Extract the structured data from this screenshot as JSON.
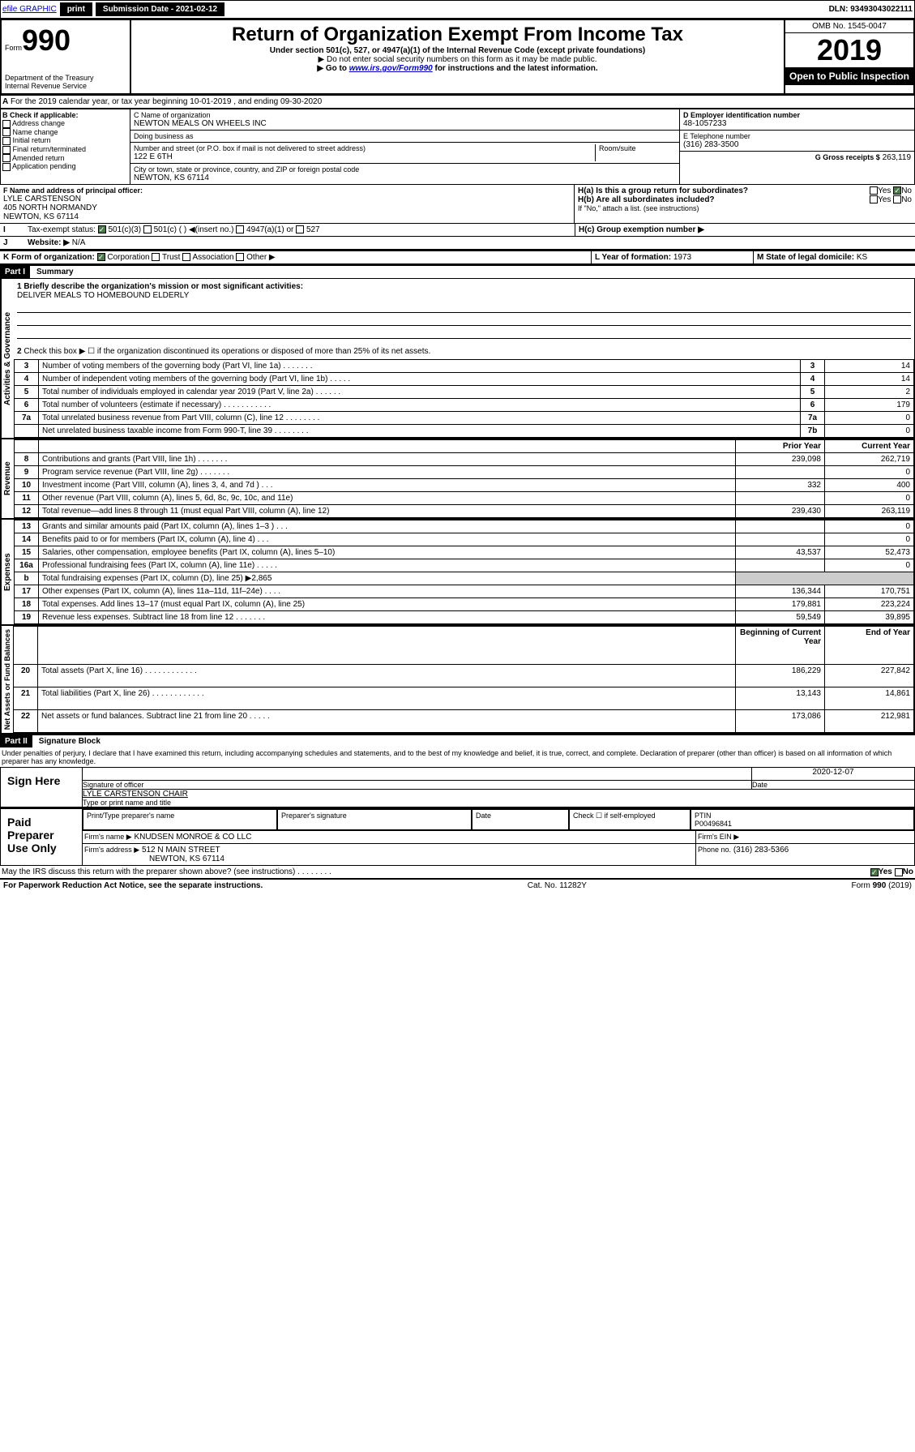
{
  "topbar": {
    "efile": "efile GRAPHIC",
    "print": "print",
    "submission": "Submission Date - 2021-02-12",
    "dln": "DLN: 93493043022111"
  },
  "header": {
    "form_prefix": "Form",
    "form_number": "990",
    "title": "Return of Organization Exempt From Income Tax",
    "subtitle": "Under section 501(c), 527, or 4947(a)(1) of the Internal Revenue Code (except private foundations)",
    "note1": "▶ Do not enter social security numbers on this form as it may be made public.",
    "note2_pre": "▶ Go to ",
    "note2_link": "www.irs.gov/Form990",
    "note2_post": " for instructions and the latest information.",
    "dept": "Department of the Treasury",
    "irs": "Internal Revenue Service",
    "omb": "OMB No. 1545-0047",
    "year": "2019",
    "open": "Open to Public Inspection"
  },
  "section_a": "For the 2019 calendar year, or tax year beginning 10-01-2019    , and ending 09-30-2020",
  "col_b": {
    "label": "B Check if applicable:",
    "items": [
      "Address change",
      "Name change",
      "Initial return",
      "Final return/terminated",
      "Amended return",
      "Application pending"
    ]
  },
  "col_c": {
    "name_label": "C Name of organization",
    "name": "NEWTON MEALS ON WHEELS INC",
    "dba_label": "Doing business as",
    "dba": "",
    "addr_label": "Number and street (or P.O. box if mail is not delivered to street address)",
    "room_label": "Room/suite",
    "addr": "122 E 6TH",
    "city_label": "City or town, state or province, country, and ZIP or foreign postal code",
    "city": "NEWTON, KS  67114"
  },
  "col_d": {
    "ein_label": "D Employer identification number",
    "ein": "48-1057233",
    "phone_label": "E Telephone number",
    "phone": "(316) 283-3500",
    "gross_label": "G Gross receipts $",
    "gross": "263,119"
  },
  "section_f": {
    "label": "F  Name and address of principal officer:",
    "name": "LYLE CARSTENSON",
    "addr": "405 NORTH NORMANDY",
    "city": "NEWTON, KS  67114"
  },
  "section_h": {
    "a": "H(a)  Is this a group return for subordinates?",
    "b": "H(b)  Are all subordinates included?",
    "b_note": "If \"No,\" attach a list. (see instructions)",
    "c": "H(c)  Group exemption number ▶"
  },
  "section_i": {
    "label": "Tax-exempt status:",
    "opt1": "501(c)(3)",
    "opt2": "501(c) (  ) ◀(insert no.)",
    "opt3": "4947(a)(1) or",
    "opt4": "527"
  },
  "section_j": {
    "label": "Website: ▶",
    "value": "N/A"
  },
  "section_k": {
    "label": "K Form of organization:",
    "opts": [
      "Corporation",
      "Trust",
      "Association",
      "Other ▶"
    ]
  },
  "section_l": {
    "label": "L Year of formation:",
    "value": "1973"
  },
  "section_m": {
    "label": "M State of legal domicile:",
    "value": "KS"
  },
  "part1": {
    "label": "Part I",
    "title": "Summary"
  },
  "mission": {
    "q": "1  Briefly describe the organization's mission or most significant activities:",
    "a": "DELIVER MEALS TO HOMEBOUND ELDERLY"
  },
  "governance": {
    "label": "Activities & Governance",
    "line2": "Check this box ▶ ☐  if the organization discontinued its operations or disposed of more than 25% of its net assets.",
    "rows": [
      {
        "n": "3",
        "t": "Number of voting members of the governing body (Part VI, line 1a)   .    .    .    .    .    .    .",
        "c": "3",
        "v": "14"
      },
      {
        "n": "4",
        "t": "Number of independent voting members of the governing body (Part VI, line 1b)   .    .    .    .    .",
        "c": "4",
        "v": "14"
      },
      {
        "n": "5",
        "t": "Total number of individuals employed in calendar year 2019 (Part V, line 2a)   .    .    .    .    .    .",
        "c": "5",
        "v": "2"
      },
      {
        "n": "6",
        "t": "Total number of volunteers (estimate if necessary)   .    .    .    .    .    .    .    .    .    .    .",
        "c": "6",
        "v": "179"
      },
      {
        "n": "7a",
        "t": "Total unrelated business revenue from Part VIII, column (C), line 12   .    .    .    .    .    .    .    .",
        "c": "7a",
        "v": "0"
      },
      {
        "n": "",
        "t": "Net unrelated business taxable income from Form 990-T, line 39   .    .    .    .    .    .    .    .",
        "c": "7b",
        "v": "0"
      }
    ]
  },
  "revenue": {
    "label": "Revenue",
    "header_prior": "Prior Year",
    "header_current": "Current Year",
    "rows": [
      {
        "n": "8",
        "t": "Contributions and grants (Part VIII, line 1h)   .    .    .    .    .    .    .",
        "p": "239,098",
        "c": "262,719"
      },
      {
        "n": "9",
        "t": "Program service revenue (Part VIII, line 2g)   .    .    .    .    .    .    .",
        "p": "",
        "c": "0"
      },
      {
        "n": "10",
        "t": "Investment income (Part VIII, column (A), lines 3, 4, and 7d )   .    .    .",
        "p": "332",
        "c": "400"
      },
      {
        "n": "11",
        "t": "Other revenue (Part VIII, column (A), lines 5, 6d, 8c, 9c, 10c, and 11e)",
        "p": "",
        "c": "0"
      },
      {
        "n": "12",
        "t": "Total revenue—add lines 8 through 11 (must equal Part VIII, column (A), line 12)",
        "p": "239,430",
        "c": "263,119"
      }
    ]
  },
  "expenses": {
    "label": "Expenses",
    "rows": [
      {
        "n": "13",
        "t": "Grants and similar amounts paid (Part IX, column (A), lines 1–3 )   .    .    .",
        "p": "",
        "c": "0"
      },
      {
        "n": "14",
        "t": "Benefits paid to or for members (Part IX, column (A), line 4)   .    .    .",
        "p": "",
        "c": "0"
      },
      {
        "n": "15",
        "t": "Salaries, other compensation, employee benefits (Part IX, column (A), lines 5–10)",
        "p": "43,537",
        "c": "52,473"
      },
      {
        "n": "16a",
        "t": "Professional fundraising fees (Part IX, column (A), line 11e)   .    .    .    .    .",
        "p": "",
        "c": "0"
      },
      {
        "n": "b",
        "t": "Total fundraising expenses (Part IX, column (D), line 25) ▶2,865",
        "p": "—",
        "c": "—"
      },
      {
        "n": "17",
        "t": "Other expenses (Part IX, column (A), lines 11a–11d, 11f–24e)   .    .    .    .",
        "p": "136,344",
        "c": "170,751"
      },
      {
        "n": "18",
        "t": "Total expenses. Add lines 13–17 (must equal Part IX, column (A), line 25)",
        "p": "179,881",
        "c": "223,224"
      },
      {
        "n": "19",
        "t": "Revenue less expenses. Subtract line 18 from line 12   .    .    .    .    .    .    .",
        "p": "59,549",
        "c": "39,895"
      }
    ]
  },
  "netassets": {
    "label": "Net Assets or Fund Balances",
    "header_begin": "Beginning of Current Year",
    "header_end": "End of Year",
    "rows": [
      {
        "n": "20",
        "t": "Total assets (Part X, line 16)   .    .    .    .    .    .    .    .    .    .    .    .",
        "p": "186,229",
        "c": "227,842"
      },
      {
        "n": "21",
        "t": "Total liabilities (Part X, line 26)   .    .    .    .    .    .    .    .    .    .    .    .",
        "p": "13,143",
        "c": "14,861"
      },
      {
        "n": "22",
        "t": "Net assets or fund balances. Subtract line 21 from line 20   .    .    .    .    .",
        "p": "173,086",
        "c": "212,981"
      }
    ]
  },
  "part2": {
    "label": "Part II",
    "title": "Signature Block"
  },
  "perjury": "Under penalties of perjury, I declare that I have examined this return, including accompanying schedules and statements, and to the best of my knowledge and belief, it is true, correct, and complete. Declaration of preparer (other than officer) is based on all information of which preparer has any knowledge.",
  "sign": {
    "label": "Sign Here",
    "sig_label": "Signature of officer",
    "date": "2020-12-07",
    "date_label": "Date",
    "name": "LYLE CARSTENSON  CHAIR",
    "name_label": "Type or print name and title"
  },
  "preparer": {
    "label": "Paid Preparer Use Only",
    "h1": "Print/Type preparer's name",
    "h2": "Preparer's signature",
    "h3": "Date",
    "h4_a": "Check ☐ if self-employed",
    "h5": "PTIN",
    "ptin": "P00496841",
    "firm_label": "Firm's name      ▶",
    "firm": "KNUDSEN MONROE & CO LLC",
    "ein_label": "Firm's EIN ▶",
    "addr_label": "Firm's address ▶",
    "addr1": "512 N MAIN STREET",
    "addr2": "NEWTON, KS  67114",
    "phone_label": "Phone no.",
    "phone": "(316) 283-5366"
  },
  "discuss": "May the IRS discuss this return with the preparer shown above? (see instructions)   .    .    .    .    .    .    .    .",
  "footer": {
    "left": "For Paperwork Reduction Act Notice, see the separate instructions.",
    "mid": "Cat. No. 11282Y",
    "right": "Form 990 (2019)"
  },
  "yesno": {
    "yes": "Yes",
    "no": "No"
  }
}
